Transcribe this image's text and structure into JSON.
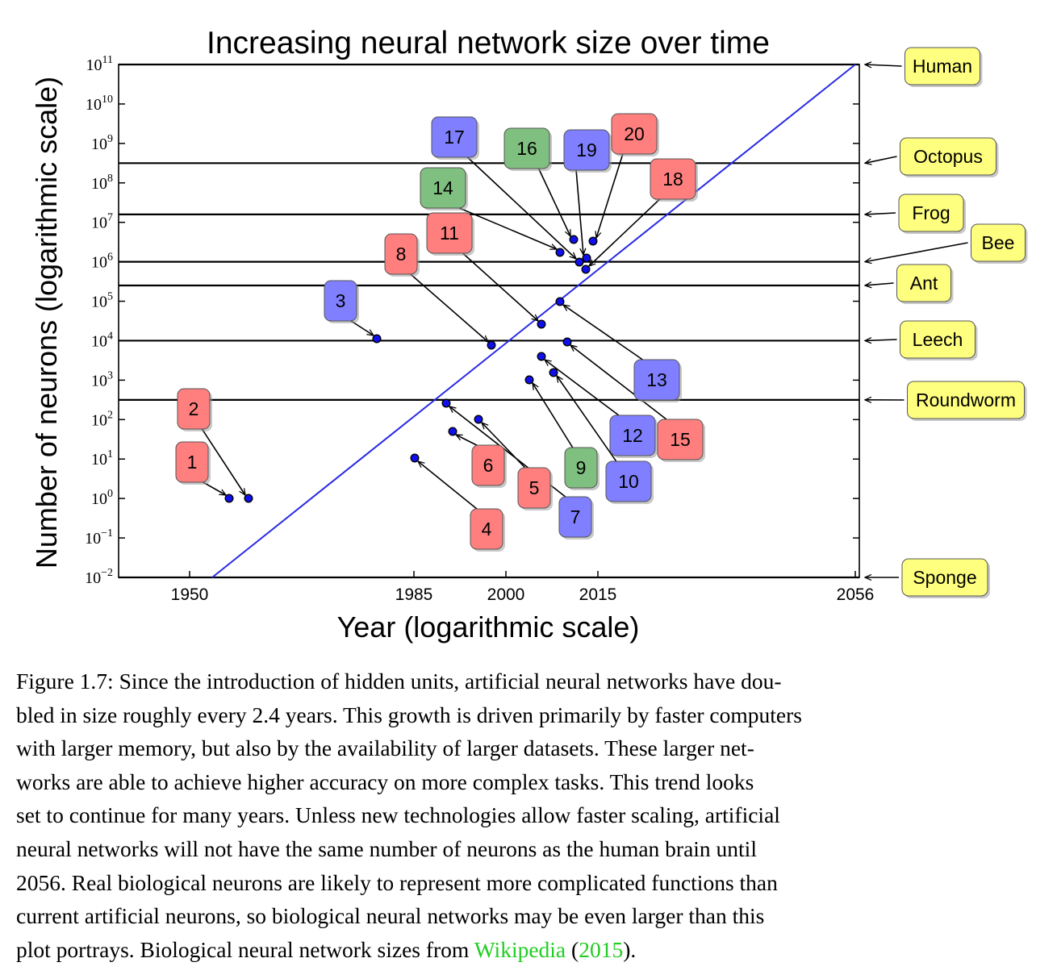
{
  "chart_data": {
    "type": "scatter",
    "title": "Increasing neural network size over time",
    "xlabel": "Year (logarithmic scale)",
    "ylabel": "Number of neurons (logarithmic scale)",
    "x_ticks": [
      "1950",
      "1985",
      "2000",
      "2015",
      "2056"
    ],
    "y_ticks": [
      {
        "base": "10",
        "exp": "−2"
      },
      {
        "base": "10",
        "exp": "−1"
      },
      {
        "base": "10",
        "exp": "0"
      },
      {
        "base": "10",
        "exp": "1"
      },
      {
        "base": "10",
        "exp": "2"
      },
      {
        "base": "10",
        "exp": "3"
      },
      {
        "base": "10",
        "exp": "4"
      },
      {
        "base": "10",
        "exp": "5"
      },
      {
        "base": "10",
        "exp": "6"
      },
      {
        "base": "10",
        "exp": "7"
      },
      {
        "base": "10",
        "exp": "8"
      },
      {
        "base": "10",
        "exp": "9"
      },
      {
        "base": "10",
        "exp": "10"
      },
      {
        "base": "10",
        "exp": "11"
      }
    ],
    "ylim_log10": [
      -2,
      11
    ],
    "trend_line": {
      "from": {
        "x": 1958,
        "y_log10": -2
      },
      "to": {
        "x": 2056,
        "y_log10": 11
      },
      "color": "#2a2ae6"
    },
    "reference_lines": [
      {
        "label": "Human",
        "y_log10": 11.0
      },
      {
        "label": "Octopus",
        "y_log10": 8.5
      },
      {
        "label": "Frog",
        "y_log10": 7.2
      },
      {
        "label": "Bee",
        "y_log10": 6.0
      },
      {
        "label": "Ant",
        "y_log10": 5.4
      },
      {
        "label": "Leech",
        "y_log10": 4.0
      },
      {
        "label": "Roundworm",
        "y_log10": 2.5
      },
      {
        "label": "Sponge",
        "y_log10": -2.0
      }
    ],
    "points": [
      {
        "label": "1",
        "color": "red",
        "x": 1958,
        "y_log10": 0.0
      },
      {
        "label": "2",
        "color": "red",
        "x": 1962,
        "y_log10": 0.0
      },
      {
        "label": "3",
        "color": "blue",
        "x": 1982,
        "y_log10": 4.0
      },
      {
        "label": "4",
        "color": "red",
        "x": 1986,
        "y_log10": 1.0
      },
      {
        "label": "5",
        "color": "red",
        "x": 1995,
        "y_log10": 2.0
      },
      {
        "label": "6",
        "color": "red",
        "x": 1991,
        "y_log10": 1.7
      },
      {
        "label": "7",
        "color": "blue",
        "x": 1990,
        "y_log10": 2.4
      },
      {
        "label": "8",
        "color": "red",
        "x": 1998,
        "y_log10": 3.9
      },
      {
        "label": "9",
        "color": "green",
        "x": 2004,
        "y_log10": 3.0
      },
      {
        "label": "10",
        "color": "blue",
        "x": 2006,
        "y_log10": 3.6
      },
      {
        "label": "11",
        "color": "red",
        "x": 2006,
        "y_log10": 4.4
      },
      {
        "label": "12",
        "color": "blue",
        "x": 2008,
        "y_log10": 3.2
      },
      {
        "label": "13",
        "color": "blue",
        "x": 2009,
        "y_log10": 5.0
      },
      {
        "label": "14",
        "color": "green",
        "x": 2009,
        "y_log10": 6.2
      },
      {
        "label": "15",
        "color": "red",
        "x": 2010,
        "y_log10": 3.95
      },
      {
        "label": "16",
        "color": "green",
        "x": 2011,
        "y_log10": 6.6
      },
      {
        "label": "17",
        "color": "blue",
        "x": 2012,
        "y_log10": 6.0
      },
      {
        "label": "18",
        "color": "red",
        "x": 2013,
        "y_log10": 5.8
      },
      {
        "label": "19",
        "color": "blue",
        "x": 2013,
        "y_log10": 6.1
      },
      {
        "label": "20",
        "color": "red",
        "x": 2014,
        "y_log10": 6.5
      }
    ],
    "grid": false,
    "colors": {
      "red": "#ff7f7f",
      "blue": "#7f7fff",
      "green": "#7fbf7f",
      "yellow": "#ffff7f",
      "trend": "#2a2ae6"
    }
  },
  "caption": {
    "lines": [
      "Figure 1.7: Since the introduction of hidden units, artificial neural networks have dou-",
      "bled in size roughly every 2.4 years. This growth is driven primarily by faster computers",
      "with larger memory, but also by the availability of larger datasets. These larger net-",
      "works are able to achieve higher accuracy on more complex tasks. This trend looks",
      "set to continue for many years. Unless new technologies allow faster scaling, artificial",
      "neural networks will not have the same number of neurons as the human brain until",
      "2056. Real biological neurons are likely to represent more complicated functions than",
      "current artificial neurons, so biological neural networks may be even larger than this"
    ],
    "last_line_prefix": "plot portrays. Biological neural network sizes from ",
    "link_text": "Wikipedia",
    "paren_open": " (",
    "year_link": "2015",
    "paren_close": ")."
  }
}
